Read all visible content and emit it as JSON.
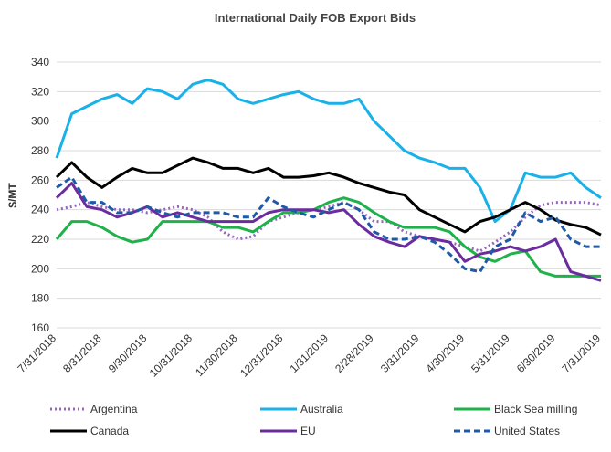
{
  "chart_data": {
    "type": "line",
    "title": "International Daily FOB Export Bids",
    "y_label": "$/MT",
    "categories": [
      "7/31/2018",
      null,
      null,
      "8/31/2018",
      null,
      null,
      "9/30/2018",
      null,
      null,
      "10/31/2018",
      null,
      null,
      "11/30/2018",
      null,
      null,
      "12/31/2018",
      null,
      null,
      "1/31/2019",
      null,
      null,
      "2/28/2019",
      null,
      null,
      "3/31/2019",
      null,
      null,
      "4/30/2019",
      null,
      null,
      "5/31/2019",
      null,
      null,
      "6/30/2019",
      null,
      null,
      "7/31/2019"
    ],
    "ylim": [
      160,
      340
    ],
    "yticks": [
      160,
      180,
      200,
      220,
      240,
      260,
      280,
      300,
      320,
      340
    ],
    "grid": true,
    "legend": "bottom",
    "series": [
      {
        "name": "Argentina",
        "color": "#9467bd",
        "dash": "dotted",
        "values": [
          240,
          242,
          245,
          242,
          240,
          240,
          238,
          240,
          242,
          240,
          235,
          225,
          220,
          222,
          232,
          235,
          238,
          240,
          242,
          245,
          240,
          232,
          232,
          225,
          222,
          220,
          218,
          215,
          212,
          218,
          225,
          235,
          243,
          245,
          245,
          245,
          243
        ]
      },
      {
        "name": "Australia",
        "color": "#1ab0e8",
        "dash": "solid",
        "values": [
          275,
          305,
          310,
          315,
          318,
          312,
          322,
          320,
          315,
          325,
          328,
          325,
          315,
          312,
          315,
          318,
          320,
          315,
          312,
          312,
          315,
          300,
          290,
          280,
          275,
          272,
          268,
          268,
          255,
          232,
          240,
          265,
          262,
          262,
          265,
          255,
          248
        ]
      },
      {
        "name": "Black Sea milling",
        "color": "#1fb14a",
        "dash": "solid",
        "values": [
          220,
          232,
          232,
          228,
          222,
          218,
          220,
          232,
          232,
          232,
          232,
          228,
          228,
          225,
          232,
          238,
          238,
          240,
          245,
          248,
          245,
          238,
          232,
          228,
          228,
          228,
          225,
          215,
          208,
          205,
          210,
          212,
          198,
          195,
          195,
          195,
          195
        ]
      },
      {
        "name": "Canada",
        "color": "#000000",
        "dash": "solid",
        "values": [
          262,
          272,
          262,
          255,
          262,
          268,
          265,
          265,
          270,
          275,
          272,
          268,
          268,
          265,
          268,
          262,
          262,
          263,
          265,
          262,
          258,
          255,
          252,
          250,
          240,
          235,
          230,
          225,
          232,
          235,
          240,
          245,
          240,
          233,
          230,
          228,
          223
        ]
      },
      {
        "name": "EU",
        "color": "#6a2c9e",
        "dash": "solid",
        "values": [
          248,
          258,
          242,
          240,
          235,
          238,
          242,
          235,
          238,
          235,
          232,
          232,
          232,
          232,
          238,
          240,
          240,
          240,
          238,
          240,
          230,
          222,
          218,
          215,
          222,
          220,
          218,
          205,
          210,
          212,
          215,
          212,
          215,
          220,
          198,
          195,
          192
        ]
      },
      {
        "name": "United States",
        "color": "#1f5aa6",
        "dash": "dashed",
        "values": [
          255,
          262,
          245,
          245,
          238,
          238,
          242,
          238,
          235,
          238,
          238,
          238,
          235,
          235,
          248,
          242,
          238,
          235,
          240,
          245,
          240,
          225,
          220,
          220,
          222,
          218,
          210,
          200,
          198,
          215,
          220,
          238,
          232,
          235,
          220,
          215,
          215
        ]
      }
    ]
  }
}
